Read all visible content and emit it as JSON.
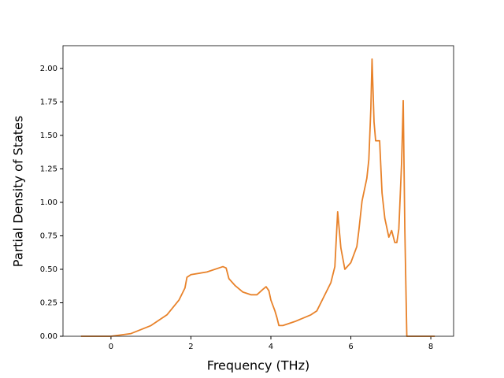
{
  "chart_data": {
    "type": "line",
    "x_label": "Frequency (THz)",
    "y_label": "Partial Density of States",
    "x": [
      -0.75,
      0,
      0.5,
      1.0,
      1.4,
      1.7,
      1.85,
      1.9,
      2.0,
      2.4,
      2.8,
      2.88,
      2.95,
      3.1,
      3.3,
      3.5,
      3.65,
      3.8,
      3.88,
      3.95,
      4.0,
      4.1,
      4.15,
      4.2,
      4.3,
      4.6,
      5.0,
      5.15,
      5.3,
      5.5,
      5.6,
      5.67,
      5.75,
      5.85,
      6.0,
      6.15,
      6.2,
      6.28,
      6.4,
      6.45,
      6.5,
      6.53,
      6.58,
      6.62,
      6.72,
      6.78,
      6.85,
      6.95,
      7.02,
      7.1,
      7.15,
      7.2,
      7.27,
      7.31,
      7.35,
      7.4,
      8.1
    ],
    "series": [
      {
        "color": "#e8822a",
        "values": [
          0,
          0,
          0.02,
          0.08,
          0.16,
          0.27,
          0.36,
          0.44,
          0.46,
          0.48,
          0.52,
          0.51,
          0.43,
          0.38,
          0.33,
          0.31,
          0.31,
          0.35,
          0.37,
          0.34,
          0.27,
          0.19,
          0.14,
          0.08,
          0.08,
          0.11,
          0.16,
          0.19,
          0.28,
          0.4,
          0.52,
          0.93,
          0.66,
          0.5,
          0.55,
          0.67,
          0.79,
          1.01,
          1.18,
          1.32,
          1.7,
          2.07,
          1.6,
          1.46,
          1.46,
          1.07,
          0.88,
          0.74,
          0.79,
          0.7,
          0.7,
          0.8,
          1.3,
          1.76,
          0.8,
          0,
          0
        ]
      }
    ],
    "xlim": [
      -1.2,
      8.57
    ],
    "ylim": [
      0,
      2.17
    ],
    "xticks": [
      0,
      2,
      4,
      6,
      8
    ],
    "yticks": [
      {
        "value": 0,
        "label": "0.00"
      },
      {
        "value": 0.25,
        "label": "0.25"
      },
      {
        "value": 0.5,
        "label": "0.50"
      },
      {
        "value": 0.75,
        "label": "0.75"
      },
      {
        "value": 1,
        "label": "1.00"
      },
      {
        "value": 1.25,
        "label": "1.25"
      },
      {
        "value": 1.5,
        "label": "1.50"
      },
      {
        "value": 1.75,
        "label": "1.75"
      },
      {
        "value": 2,
        "label": "2.00"
      }
    ],
    "grid": false
  }
}
